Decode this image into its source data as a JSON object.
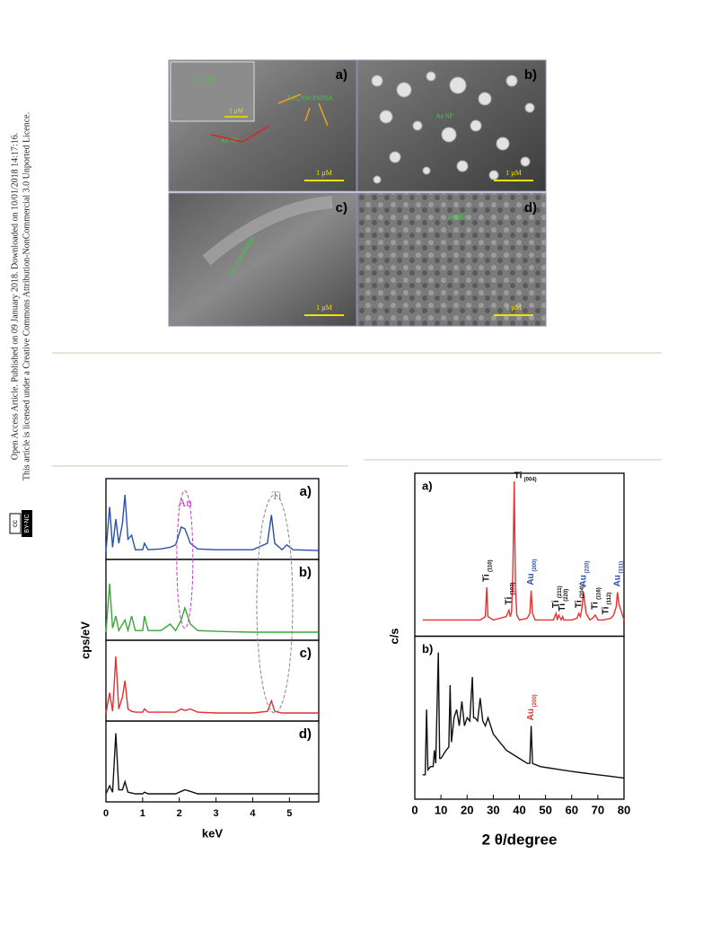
{
  "sidebar": {
    "line1": "Open Access Article. Published on 09 January 2018. Downloaded on 10/01/2018 14:17:16.",
    "line2": "This article is licensed under a Creative Commons Attribution-NonCommercial 3.0 Unported Licence.",
    "badge_cc": "cc",
    "badge_license": "BY-NC"
  },
  "sem_figure": {
    "panels": [
      {
        "label": "a)",
        "scale_bar": "1 µM",
        "inset_label": "TiO₂ NW",
        "inset_scale_bar": "1 µM",
        "annotations": [
          "TiO₂ NW/PAPBA",
          "Au NP"
        ]
      },
      {
        "label": "b)",
        "scale_bar": "1 µM",
        "annotations": [
          "Au NP"
        ]
      },
      {
        "label": "c)",
        "scale_bar": "1 µM",
        "annotations": [
          "TiO₂ NW/PAPBA"
        ]
      },
      {
        "label": "d)",
        "scale_bar": "1 µM",
        "annotations": [
          "PAPBA"
        ]
      }
    ]
  },
  "chart_data": [
    {
      "type": "line",
      "x_label": "keV",
      "y_label": "cps/eV",
      "xlim": [
        0,
        5.8
      ],
      "xticks": [
        0,
        1,
        2,
        3,
        4,
        5
      ],
      "ylim": [
        0,
        1
      ],
      "annotations": [
        "Au",
        "Ti"
      ],
      "series": [
        {
          "name": "a)",
          "color": "#2b4fae",
          "x": [
            0,
            0.1,
            0.18,
            0.27,
            0.35,
            0.45,
            0.52,
            0.6,
            0.7,
            0.8,
            1.0,
            1.05,
            1.15,
            1.5,
            1.75,
            1.9,
            2.05,
            2.15,
            2.3,
            2.5,
            3,
            4,
            4.4,
            4.51,
            4.6,
            4.8,
            4.93,
            5.1,
            5.8
          ],
          "values": [
            0.1,
            0.65,
            0.15,
            0.5,
            0.2,
            0.45,
            0.8,
            0.25,
            0.3,
            0.12,
            0.12,
            0.2,
            0.12,
            0.13,
            0.15,
            0.18,
            0.4,
            0.38,
            0.2,
            0.13,
            0.12,
            0.12,
            0.2,
            0.55,
            0.2,
            0.12,
            0.18,
            0.12,
            0.11
          ]
        },
        {
          "name": "b)",
          "color": "#3aa63a",
          "x": [
            0,
            0.1,
            0.18,
            0.27,
            0.35,
            0.45,
            0.52,
            0.6,
            0.7,
            0.8,
            1.0,
            1.05,
            1.15,
            1.5,
            1.75,
            1.9,
            2.05,
            2.15,
            2.3,
            2.5,
            3,
            4,
            4.4,
            4.51,
            4.6,
            4.8,
            4.93,
            5.1,
            5.8
          ],
          "values": [
            0.1,
            0.7,
            0.15,
            0.3,
            0.12,
            0.2,
            0.25,
            0.12,
            0.3,
            0.12,
            0.12,
            0.3,
            0.12,
            0.12,
            0.2,
            0.12,
            0.25,
            0.4,
            0.2,
            0.12,
            0.11,
            0.1,
            0.1,
            0.1,
            0.1,
            0.1,
            0.1,
            0.1,
            0.1
          ]
        },
        {
          "name": "c)",
          "color": "#e03030",
          "x": [
            0,
            0.1,
            0.18,
            0.27,
            0.35,
            0.45,
            0.52,
            0.6,
            0.7,
            0.8,
            1.0,
            1.05,
            1.15,
            1.5,
            1.75,
            1.9,
            2.05,
            2.15,
            2.3,
            2.5,
            3,
            4,
            4.4,
            4.51,
            4.6,
            4.8,
            4.93,
            5.1,
            5.8
          ],
          "values": [
            0.1,
            0.35,
            0.12,
            0.8,
            0.15,
            0.3,
            0.5,
            0.15,
            0.12,
            0.11,
            0.11,
            0.15,
            0.11,
            0.11,
            0.11,
            0.11,
            0.15,
            0.13,
            0.15,
            0.11,
            0.1,
            0.1,
            0.12,
            0.25,
            0.12,
            0.1,
            0.1,
            0.1,
            0.1
          ]
        },
        {
          "name": "d)",
          "color": "#111111",
          "x": [
            0,
            0.1,
            0.18,
            0.27,
            0.35,
            0.45,
            0.52,
            0.6,
            0.7,
            0.8,
            1.0,
            1.05,
            1.15,
            1.5,
            1.75,
            1.9,
            2.05,
            2.15,
            2.3,
            2.5,
            3,
            4,
            4.4,
            4.51,
            4.6,
            4.8,
            4.93,
            5.1,
            5.8
          ],
          "values": [
            0.1,
            0.2,
            0.12,
            0.85,
            0.15,
            0.15,
            0.25,
            0.12,
            0.11,
            0.1,
            0.1,
            0.12,
            0.1,
            0.1,
            0.1,
            0.1,
            0.13,
            0.15,
            0.13,
            0.1,
            0.1,
            0.1,
            0.1,
            0.1,
            0.1,
            0.1,
            0.1,
            0.1,
            0.1
          ]
        }
      ]
    },
    {
      "type": "line",
      "x_label": "2 θ/degree",
      "y_label": "c/s",
      "xlim": [
        0,
        80
      ],
      "xticks": [
        0,
        10,
        20,
        30,
        40,
        50,
        60,
        70,
        80
      ],
      "ylim": [
        0,
        1
      ],
      "series": [
        {
          "name": "a)",
          "color": "#e83030",
          "x": [
            3,
            10,
            20,
            25,
            27,
            27.5,
            28,
            30,
            35,
            36,
            36.5,
            37,
            37.5,
            38,
            38.5,
            39,
            40,
            43,
            44,
            44.5,
            45,
            46,
            50,
            53,
            54,
            54.5,
            55,
            56,
            56.5,
            57,
            60,
            62,
            62.7,
            63.3,
            64,
            64.5,
            65.5,
            67,
            68,
            69,
            70,
            72,
            75,
            76,
            77,
            77.5,
            78,
            80
          ],
          "values": [
            0.1,
            0.1,
            0.1,
            0.1,
            0.12,
            0.3,
            0.12,
            0.1,
            0.12,
            0.16,
            0.12,
            0.15,
            0.4,
            0.95,
            0.3,
            0.13,
            0.1,
            0.11,
            0.14,
            0.28,
            0.14,
            0.1,
            0.1,
            0.1,
            0.14,
            0.1,
            0.13,
            0.1,
            0.12,
            0.1,
            0.1,
            0.11,
            0.14,
            0.12,
            0.18,
            0.27,
            0.14,
            0.1,
            0.11,
            0.13,
            0.1,
            0.1,
            0.11,
            0.13,
            0.18,
            0.27,
            0.2,
            0.1
          ],
          "peak_labels": [
            {
              "text": "Ti",
              "index": "(110)",
              "x": 27.5,
              "color": "#111111"
            },
            {
              "text": "Ti",
              "index": "(103)",
              "x": 36,
              "color": "#111111"
            },
            {
              "text": "Ti",
              "index": "(004)",
              "x": 38,
              "color": "#111111"
            },
            {
              "text": "Au",
              "index": "(200)",
              "x": 44.5,
              "color": "#2b4fae"
            },
            {
              "text": "Ti",
              "index": "(211)",
              "x": 54,
              "color": "#111111"
            },
            {
              "text": "Ti",
              "index": "(220)",
              "x": 56.5,
              "color": "#111111"
            },
            {
              "text": "Ti",
              "index": "(204)",
              "x": 62.7,
              "color": "#111111"
            },
            {
              "text": "Au",
              "index": "(220)",
              "x": 64.5,
              "color": "#2b4fae"
            },
            {
              "text": "Ti",
              "index": "(116)",
              "x": 69,
              "color": "#111111"
            },
            {
              "text": "Ti",
              "index": "(112)",
              "x": 73,
              "color": "#111111"
            },
            {
              "text": "Au",
              "index": "(311)",
              "x": 77.5,
              "color": "#2b4fae"
            }
          ]
        },
        {
          "name": "b)",
          "color": "#111111",
          "x": [
            3,
            4,
            4.5,
            5,
            6,
            7,
            7.5,
            8,
            9,
            9.5,
            10,
            12,
            13,
            13.5,
            14,
            15,
            16,
            17,
            18,
            19,
            20,
            21,
            22,
            22.5,
            23,
            24,
            25,
            26,
            27,
            28,
            30,
            32,
            35,
            38,
            40,
            43,
            44,
            44.5,
            45,
            48,
            52,
            56,
            60,
            65,
            70,
            75,
            80
          ],
          "values": [
            0.15,
            0.15,
            0.55,
            0.18,
            0.2,
            0.2,
            0.3,
            0.22,
            0.9,
            0.25,
            0.25,
            0.3,
            0.32,
            0.7,
            0.35,
            0.5,
            0.55,
            0.45,
            0.6,
            0.45,
            0.5,
            0.48,
            0.75,
            0.5,
            0.5,
            0.48,
            0.62,
            0.48,
            0.45,
            0.5,
            0.4,
            0.36,
            0.3,
            0.27,
            0.25,
            0.22,
            0.22,
            0.45,
            0.22,
            0.2,
            0.19,
            0.18,
            0.17,
            0.16,
            0.15,
            0.14,
            0.13
          ],
          "peak_labels": [
            {
              "text": "Au",
              "index": "(200)",
              "x": 44.5,
              "color": "#e03030"
            }
          ]
        }
      ]
    }
  ]
}
